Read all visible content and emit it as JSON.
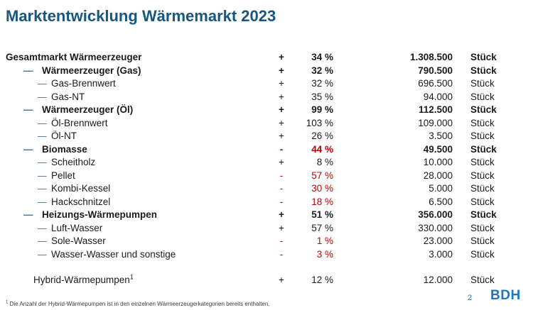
{
  "title": "Marktentwicklung Wärmemarkt 2023",
  "colors": {
    "title_blue": "#17567E",
    "dash_blue": "#41719C",
    "negative_red": "#C00000",
    "logo_blue": "#1F76B8",
    "text": "#1b1b1b"
  },
  "table": {
    "rows": [
      {
        "label": "Gesamtmarkt Wärmeerzeuger",
        "level": 0,
        "bold": true,
        "sign": "+",
        "percent": "34 %",
        "count": "1.308.500",
        "unit": "Stück",
        "negative": false
      },
      {
        "label": "Wärmeerzeuger (Gas)",
        "level": 1,
        "bold": true,
        "sign": "+",
        "percent": "32 %",
        "count": "790.500",
        "unit": "Stück",
        "negative": false
      },
      {
        "label": "Gas-Brennwert",
        "level": 2,
        "bold": false,
        "sign": "+",
        "percent": "32 %",
        "count": "696.500",
        "unit": "Stück",
        "negative": false
      },
      {
        "label": "Gas-NT",
        "level": 2,
        "bold": false,
        "sign": "+",
        "percent": "35 %",
        "count": "94.000",
        "unit": "Stück",
        "negative": false
      },
      {
        "label": "Wärmeerzeuger (Öl)",
        "level": 1,
        "bold": true,
        "sign": "+",
        "percent": "99 %",
        "count": "112.500",
        "unit": "Stück",
        "negative": false
      },
      {
        "label": "Öl-Brennwert",
        "level": 2,
        "bold": false,
        "sign": "+",
        "percent": "103 %",
        "count": "109.000",
        "unit": "Stück",
        "negative": false
      },
      {
        "label": "Öl-NT",
        "level": 2,
        "bold": false,
        "sign": "+",
        "percent": "26 %",
        "count": "3.500",
        "unit": "Stück",
        "negative": false
      },
      {
        "label": "Biomasse",
        "level": 1,
        "bold": true,
        "sign": "-",
        "percent": "44 %",
        "count": "49.500",
        "unit": "Stück",
        "negative": true
      },
      {
        "label": "Scheitholz",
        "level": 2,
        "bold": false,
        "sign": "+",
        "percent": "8 %",
        "count": "10.000",
        "unit": "Stück",
        "negative": false
      },
      {
        "label": "Pellet",
        "level": 2,
        "bold": false,
        "sign": "-",
        "percent": "57 %",
        "count": "28.000",
        "unit": "Stück",
        "negative": true
      },
      {
        "label": "Kombi-Kessel",
        "level": 2,
        "bold": false,
        "sign": "-",
        "percent": "30 %",
        "count": "5.000",
        "unit": "Stück",
        "negative": true
      },
      {
        "label": "Hackschnitzel",
        "level": 2,
        "bold": false,
        "sign": "-",
        "percent": "18 %",
        "count": "6.500",
        "unit": "Stück",
        "negative": true
      },
      {
        "label": "Heizungs-Wärmepumpen",
        "level": 1,
        "bold": true,
        "sign": "+",
        "percent": "51 %",
        "count": "356.000",
        "unit": "Stück",
        "negative": false
      },
      {
        "label": "Luft-Wasser",
        "level": 2,
        "bold": false,
        "sign": "+",
        "percent": "57 %",
        "count": "330.000",
        "unit": "Stück",
        "negative": false
      },
      {
        "label": "Sole-Wasser",
        "level": 2,
        "bold": false,
        "sign": "-",
        "percent": "1 %",
        "count": "23.000",
        "unit": "Stück",
        "negative": true
      },
      {
        "label": "Wasser-Wasser und sonstige",
        "level": 2,
        "bold": false,
        "sign": "-",
        "percent": "3 %",
        "count": "3.000",
        "unit": "Stück",
        "negative": true
      },
      {
        "label": "Hybrid-Wärmepumpen",
        "sup": "1",
        "level": "h",
        "bold": false,
        "sign": "+",
        "percent": "12 %",
        "count": "12.000",
        "unit": "Stück",
        "negative": false,
        "gap_before": true
      }
    ]
  },
  "footnote": {
    "sup": "1",
    "text": " Die Anzahl der Hybrid-Wärmepumpen ist in den einzelnen Wärmeerzeugerkategorien bereits enthalten."
  },
  "footer": {
    "page_number": "2",
    "logo": "BDH"
  }
}
